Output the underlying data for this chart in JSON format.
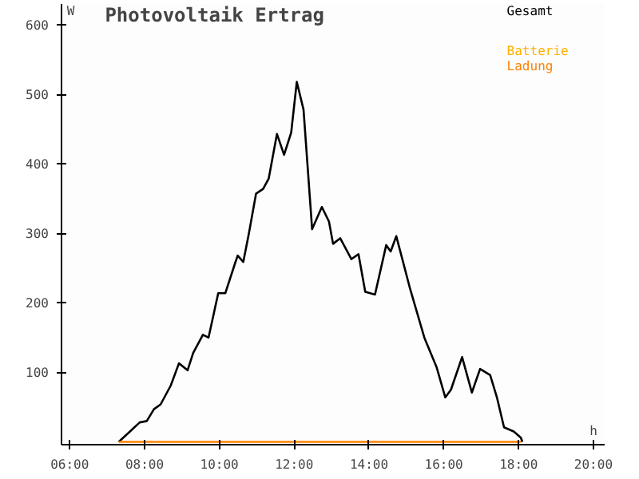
{
  "chart_data": {
    "type": "line",
    "title": "Photovoltaik Ertrag",
    "xlabel": "h",
    "ylabel": "W",
    "xlim": [
      5.78,
      20.3
    ],
    "ylim": [
      -4,
      630
    ],
    "xticks": [
      {
        "value": 6,
        "label": "06:00"
      },
      {
        "value": 8,
        "label": "08:00"
      },
      {
        "value": 10,
        "label": "10:00"
      },
      {
        "value": 12,
        "label": "12:00"
      },
      {
        "value": 14,
        "label": "14:00"
      },
      {
        "value": 16,
        "label": "16:00"
      },
      {
        "value": 18,
        "label": "18:00"
      },
      {
        "value": 20,
        "label": "20:00"
      }
    ],
    "yticks": [
      100,
      200,
      300,
      400,
      500,
      600
    ],
    "grid": false,
    "legend": "top right",
    "marker": "none",
    "line_style": "solid",
    "series": [
      {
        "name": "Gesamt",
        "color": "#000000",
        "x": [
          7.31,
          7.61,
          7.87,
          8.06,
          8.25,
          8.43,
          8.7,
          8.92,
          9.15,
          9.3,
          9.56,
          9.71,
          9.97,
          10.16,
          10.42,
          10.49,
          10.64,
          10.79,
          10.98,
          11.17,
          11.32,
          11.54,
          11.73,
          11.92,
          12.07,
          12.25,
          12.48,
          12.74,
          12.93,
          13.04,
          13.23,
          13.53,
          13.72,
          13.9,
          14.16,
          14.46,
          14.58,
          14.73,
          15.1,
          15.48,
          15.81,
          16.04,
          16.19,
          16.49,
          16.75,
          16.97,
          17.24,
          17.42,
          17.61,
          17.87,
          18.06,
          18.1
        ],
        "values": [
          0,
          15,
          28,
          30,
          47,
          54,
          81,
          113,
          103,
          128,
          154,
          150,
          214,
          214,
          257,
          268,
          259,
          300,
          357,
          364,
          379,
          443,
          413,
          445,
          518,
          478,
          306,
          338,
          317,
          285,
          293,
          263,
          270,
          216,
          212,
          283,
          274,
          296,
          220,
          150,
          107,
          64,
          75,
          122,
          71,
          105,
          96,
          64,
          21,
          15,
          6,
          0
        ]
      },
      {
        "name": "Batterie",
        "color": "#ffb000"
      },
      {
        "name": "Ladung",
        "color": "#ff8000",
        "x": [
          7.31,
          18.06
        ],
        "values": [
          0,
          0
        ]
      }
    ]
  }
}
